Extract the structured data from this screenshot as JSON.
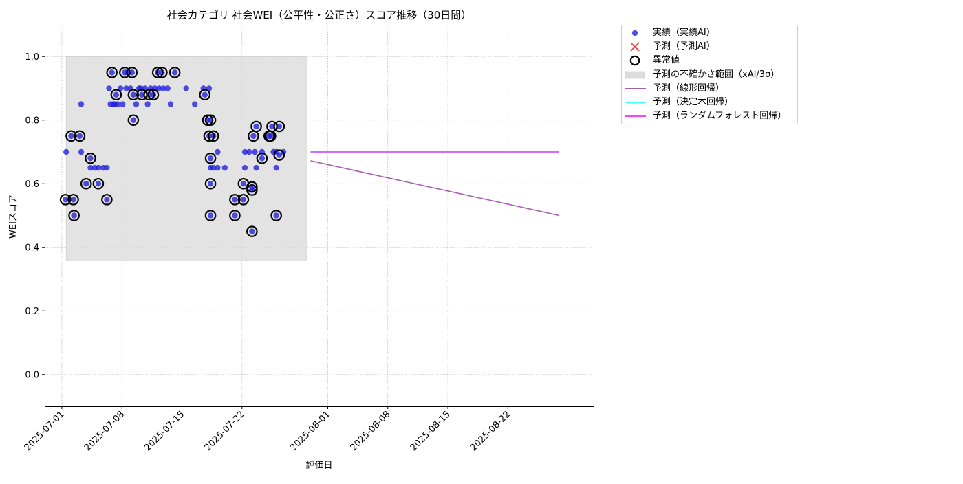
{
  "chart_data": {
    "type": "scatter",
    "title": "社会カテゴリ 社会WEI（公平性・公正さ）スコア推移（30日間）",
    "xlabel": "評価日",
    "ylabel": "WEIスコア",
    "xlim": [
      "2025-06-29",
      "2025-09-01"
    ],
    "ylim": [
      -0.1,
      1.1
    ],
    "grid": true,
    "legend_position": "outside-top-right",
    "x_ticks": [
      "2025-07-01",
      "2025-07-08",
      "2025-07-15",
      "2025-07-22",
      "2025-08-01",
      "2025-08-08",
      "2025-08-15",
      "2025-08-22"
    ],
    "y_ticks": [
      "0.0",
      "0.2",
      "0.4",
      "0.6",
      "0.8",
      "1.0"
    ],
    "colors": {
      "actual": "#1f1fe0",
      "anomaly_edge": "#000000",
      "uncertainty": "#dcdcdc",
      "linear": "#8b2a9a",
      "tree": "#00ffff",
      "forest": "#ff00ff",
      "predict_x": "#ff3333"
    },
    "legend": [
      {
        "label": "実績（実績AI）",
        "kind": "dot"
      },
      {
        "label": "予測（予測AI）",
        "kind": "x"
      },
      {
        "label": "異常値",
        "kind": "ring"
      },
      {
        "label": "予測の不確かさ範囲（xAI/3σ）",
        "kind": "area"
      },
      {
        "label": "予測（線形回帰）",
        "kind": "line-linear"
      },
      {
        "label": "予測（決定木回帰）",
        "kind": "line-tree"
      },
      {
        "label": "予測（ランダムフォレスト回帰）",
        "kind": "line-forest"
      }
    ],
    "uncertainty_band": {
      "x": [
        "2025-07-01T12:00",
        "2025-07-29T12:00"
      ],
      "y": [
        0.36,
        1.0
      ]
    },
    "actual": [
      [
        "2025-07-01T12:00",
        0.7
      ],
      [
        "2025-07-01T10:00",
        0.55
      ],
      [
        "2025-07-02T02:00",
        0.75
      ],
      [
        "2025-07-02T08:00",
        0.55
      ],
      [
        "2025-07-02T10:00",
        0.5
      ],
      [
        "2025-07-03T02:00",
        0.75
      ],
      [
        "2025-07-03T06:00",
        0.85
      ],
      [
        "2025-07-03T06:00",
        0.7
      ],
      [
        "2025-07-03T20:00",
        0.6
      ],
      [
        "2025-07-04T08:00",
        0.68
      ],
      [
        "2025-07-04T08:00",
        0.65
      ],
      [
        "2025-07-04T20:00",
        0.65
      ],
      [
        "2025-07-05T06:00",
        0.65
      ],
      [
        "2025-07-05T06:00",
        0.6
      ],
      [
        "2025-07-05T20:00",
        0.65
      ],
      [
        "2025-07-06T06:00",
        0.55
      ],
      [
        "2025-07-06T06:00",
        0.65
      ],
      [
        "2025-07-06T12:00",
        0.9
      ],
      [
        "2025-07-06T16:00",
        0.85
      ],
      [
        "2025-07-06T20:00",
        0.95
      ],
      [
        "2025-07-07T00:00",
        0.85
      ],
      [
        "2025-07-07T04:00",
        0.85
      ],
      [
        "2025-07-07T08:00",
        0.88
      ],
      [
        "2025-07-07T12:00",
        0.85
      ],
      [
        "2025-07-07T20:00",
        0.9
      ],
      [
        "2025-07-08T02:00",
        0.85
      ],
      [
        "2025-07-08T08:00",
        0.95
      ],
      [
        "2025-07-08T12:00",
        0.9
      ],
      [
        "2025-07-08T16:00",
        0.95
      ],
      [
        "2025-07-09T00:00",
        0.9
      ],
      [
        "2025-07-09T04:00",
        0.95
      ],
      [
        "2025-07-09T08:00",
        0.88
      ],
      [
        "2025-07-09T08:00",
        0.8
      ],
      [
        "2025-07-09T16:00",
        0.85
      ],
      [
        "2025-07-10T00:00",
        0.9
      ],
      [
        "2025-07-10T04:00",
        0.9
      ],
      [
        "2025-07-10T08:00",
        0.88
      ],
      [
        "2025-07-10T16:00",
        0.9
      ],
      [
        "2025-07-11T00:00",
        0.85
      ],
      [
        "2025-07-11T04:00",
        0.88
      ],
      [
        "2025-07-11T08:00",
        0.9
      ],
      [
        "2025-07-11T16:00",
        0.88
      ],
      [
        "2025-07-11T20:00",
        0.9
      ],
      [
        "2025-07-12T04:00",
        0.95
      ],
      [
        "2025-07-12T08:00",
        0.9
      ],
      [
        "2025-07-12T16:00",
        0.95
      ],
      [
        "2025-07-12T20:00",
        0.9
      ],
      [
        "2025-07-13T08:00",
        0.9
      ],
      [
        "2025-07-13T16:00",
        0.85
      ],
      [
        "2025-07-14T04:00",
        0.95
      ],
      [
        "2025-07-15T12:00",
        0.9
      ],
      [
        "2025-07-16T12:00",
        0.85
      ],
      [
        "2025-07-17T12:00",
        0.9
      ],
      [
        "2025-07-17T16:00",
        0.88
      ],
      [
        "2025-07-18T04:00",
        0.9
      ],
      [
        "2025-07-18T00:00",
        0.8
      ],
      [
        "2025-07-18T04:00",
        0.75
      ],
      [
        "2025-07-18T08:00",
        0.8
      ],
      [
        "2025-07-18T08:00",
        0.68
      ],
      [
        "2025-07-18T08:00",
        0.65
      ],
      [
        "2025-07-18T08:00",
        0.6
      ],
      [
        "2025-07-18T08:00",
        0.5
      ],
      [
        "2025-07-18T16:00",
        0.75
      ],
      [
        "2025-07-18T16:00",
        0.65
      ],
      [
        "2025-07-19T04:00",
        0.7
      ],
      [
        "2025-07-19T04:00",
        0.65
      ],
      [
        "2025-07-20T00:00",
        0.65
      ],
      [
        "2025-07-21T04:00",
        0.55
      ],
      [
        "2025-07-21T04:00",
        0.5
      ],
      [
        "2025-07-22T04:00",
        0.6
      ],
      [
        "2025-07-22T04:00",
        0.55
      ],
      [
        "2025-07-22T08:00",
        0.7
      ],
      [
        "2025-07-22T08:00",
        0.65
      ],
      [
        "2025-07-22T20:00",
        0.7
      ],
      [
        "2025-07-23T04:00",
        0.59
      ],
      [
        "2025-07-23T04:00",
        0.58
      ],
      [
        "2025-07-23T04:00",
        0.45
      ],
      [
        "2025-07-23T08:00",
        0.75
      ],
      [
        "2025-07-23T12:00",
        0.7
      ],
      [
        "2025-07-23T16:00",
        0.78
      ],
      [
        "2025-07-23T16:00",
        0.65
      ],
      [
        "2025-07-24T08:00",
        0.68
      ],
      [
        "2025-07-24T08:00",
        0.7
      ],
      [
        "2025-07-25T04:00",
        0.75
      ],
      [
        "2025-07-25T08:00",
        0.75
      ],
      [
        "2025-07-25T12:00",
        0.78
      ],
      [
        "2025-07-25T16:00",
        0.7
      ],
      [
        "2025-07-26T08:00",
        0.69
      ],
      [
        "2025-07-26T08:00",
        0.78
      ],
      [
        "2025-07-26T00:00",
        0.7
      ],
      [
        "2025-07-26T00:00",
        0.65
      ],
      [
        "2025-07-26T00:00",
        0.5
      ],
      [
        "2025-07-26T20:00",
        0.7
      ]
    ],
    "anomalies": [
      [
        "2025-07-01T10:00",
        0.55
      ],
      [
        "2025-07-02T02:00",
        0.75
      ],
      [
        "2025-07-02T08:00",
        0.55
      ],
      [
        "2025-07-02T10:00",
        0.5
      ],
      [
        "2025-07-03T02:00",
        0.75
      ],
      [
        "2025-07-03T20:00",
        0.6
      ],
      [
        "2025-07-04T08:00",
        0.68
      ],
      [
        "2025-07-05T06:00",
        0.6
      ],
      [
        "2025-07-06T06:00",
        0.55
      ],
      [
        "2025-07-06T20:00",
        0.95
      ],
      [
        "2025-07-07T08:00",
        0.88
      ],
      [
        "2025-07-08T08:00",
        0.95
      ],
      [
        "2025-07-09T04:00",
        0.95
      ],
      [
        "2025-07-09T08:00",
        0.88
      ],
      [
        "2025-07-09T08:00",
        0.8
      ],
      [
        "2025-07-10T08:00",
        0.88
      ],
      [
        "2025-07-11T04:00",
        0.88
      ],
      [
        "2025-07-11T16:00",
        0.88
      ],
      [
        "2025-07-12T04:00",
        0.95
      ],
      [
        "2025-07-12T16:00",
        0.95
      ],
      [
        "2025-07-14T04:00",
        0.95
      ],
      [
        "2025-07-17T16:00",
        0.88
      ],
      [
        "2025-07-18T00:00",
        0.8
      ],
      [
        "2025-07-18T08:00",
        0.8
      ],
      [
        "2025-07-18T04:00",
        0.75
      ],
      [
        "2025-07-18T16:00",
        0.75
      ],
      [
        "2025-07-18T08:00",
        0.68
      ],
      [
        "2025-07-18T08:00",
        0.6
      ],
      [
        "2025-07-18T08:00",
        0.5
      ],
      [
        "2025-07-21T04:00",
        0.55
      ],
      [
        "2025-07-21T04:00",
        0.5
      ],
      [
        "2025-07-22T04:00",
        0.6
      ],
      [
        "2025-07-22T04:00",
        0.55
      ],
      [
        "2025-07-23T04:00",
        0.59
      ],
      [
        "2025-07-23T04:00",
        0.58
      ],
      [
        "2025-07-23T04:00",
        0.45
      ],
      [
        "2025-07-23T08:00",
        0.75
      ],
      [
        "2025-07-23T16:00",
        0.78
      ],
      [
        "2025-07-24T08:00",
        0.68
      ],
      [
        "2025-07-25T04:00",
        0.75
      ],
      [
        "2025-07-25T08:00",
        0.75
      ],
      [
        "2025-07-25T12:00",
        0.78
      ],
      [
        "2025-07-26T08:00",
        0.69
      ],
      [
        "2025-07-26T08:00",
        0.78
      ],
      [
        "2025-07-26T00:00",
        0.5
      ]
    ],
    "prediction_lines": [
      {
        "name": "予測（線形回帰）",
        "color": "#8b2a9a",
        "x": [
          "2025-07-30",
          "2025-08-28"
        ],
        "y": [
          0.672,
          0.5
        ]
      },
      {
        "name": "予測（決定木回帰）",
        "color": "#00ffff",
        "x": [
          "2025-07-30",
          "2025-08-28"
        ],
        "y": [
          0.7,
          0.7
        ]
      },
      {
        "name": "予測（ランダムフォレスト回帰）",
        "color": "#ff00ff",
        "x": [
          "2025-07-30",
          "2025-08-28"
        ],
        "y": [
          0.7,
          0.7
        ]
      }
    ]
  }
}
